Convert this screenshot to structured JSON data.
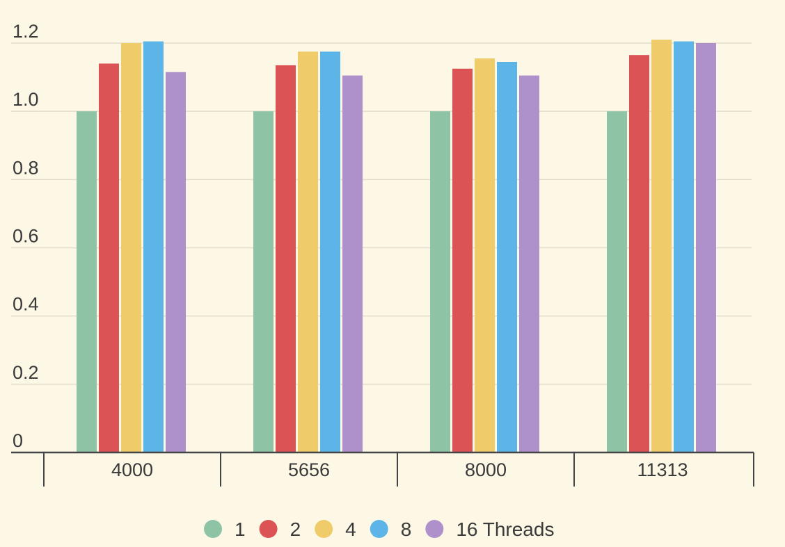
{
  "chart_data": {
    "type": "bar",
    "title": "",
    "xlabel": "",
    "ylabel": "",
    "categories": [
      "4000",
      "5656",
      "8000",
      "11313"
    ],
    "series": [
      {
        "name": "1",
        "color": "#8fc3a6",
        "values": [
          1.0,
          1.0,
          1.0,
          1.0
        ]
      },
      {
        "name": "2",
        "color": "#dc5356",
        "values": [
          1.14,
          1.135,
          1.125,
          1.165
        ]
      },
      {
        "name": "4",
        "color": "#f0cb69",
        "values": [
          1.2,
          1.175,
          1.155,
          1.21
        ]
      },
      {
        "name": "8",
        "color": "#5cb5e6",
        "values": [
          1.205,
          1.175,
          1.145,
          1.205
        ]
      },
      {
        "name": "16 Threads",
        "color": "#ae91cb",
        "values": [
          1.115,
          1.105,
          1.105,
          1.2
        ]
      }
    ],
    "ylim": [
      0,
      1.2
    ],
    "yticks": [
      0,
      0.2,
      0.4,
      0.6,
      0.8,
      1.0,
      1.2
    ],
    "ytick_labels": [
      "0",
      "0.2",
      "0.4",
      "0.6",
      "0.8",
      "1.0",
      "1.2"
    ],
    "grid": true,
    "legend_position": "bottom"
  }
}
